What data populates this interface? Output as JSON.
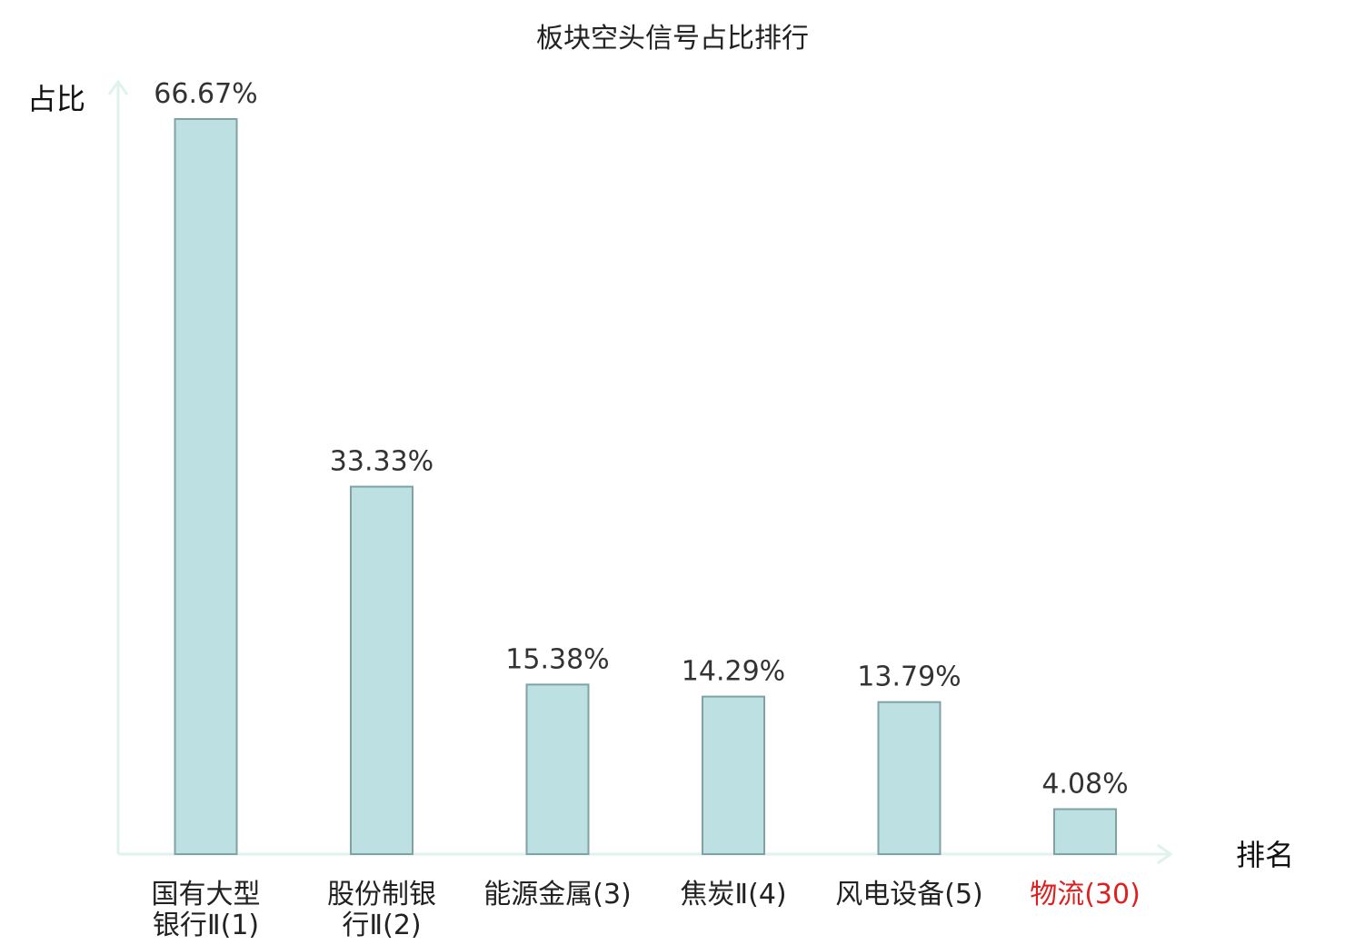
{
  "chart_data": {
    "type": "bar",
    "title": "板块空头信号占比排行",
    "ylabel": "占比",
    "xlabel": "排名",
    "ylim": [
      0,
      70
    ],
    "categories": [
      [
        "国有大型",
        "银行Ⅱ(1)"
      ],
      [
        "股份制银",
        "行Ⅱ(2)"
      ],
      [
        "能源金属(3)"
      ],
      [
        "焦炭Ⅱ(4)"
      ],
      [
        "风电设备(5)"
      ],
      [
        "物流(30)"
      ]
    ],
    "values": [
      66.67,
      33.33,
      15.38,
      14.29,
      13.79,
      4.08
    ],
    "value_labels": [
      "66.67%",
      "33.33%",
      "15.38%",
      "14.29%",
      "13.79%",
      "4.08%"
    ],
    "label_colors": [
      "#222222",
      "#222222",
      "#222222",
      "#222222",
      "#222222",
      "#e02020"
    ],
    "bar_fill": "#bde0e2",
    "bar_stroke": "#7fa3a5",
    "axis_color": "#dff2ee",
    "grid": false
  }
}
